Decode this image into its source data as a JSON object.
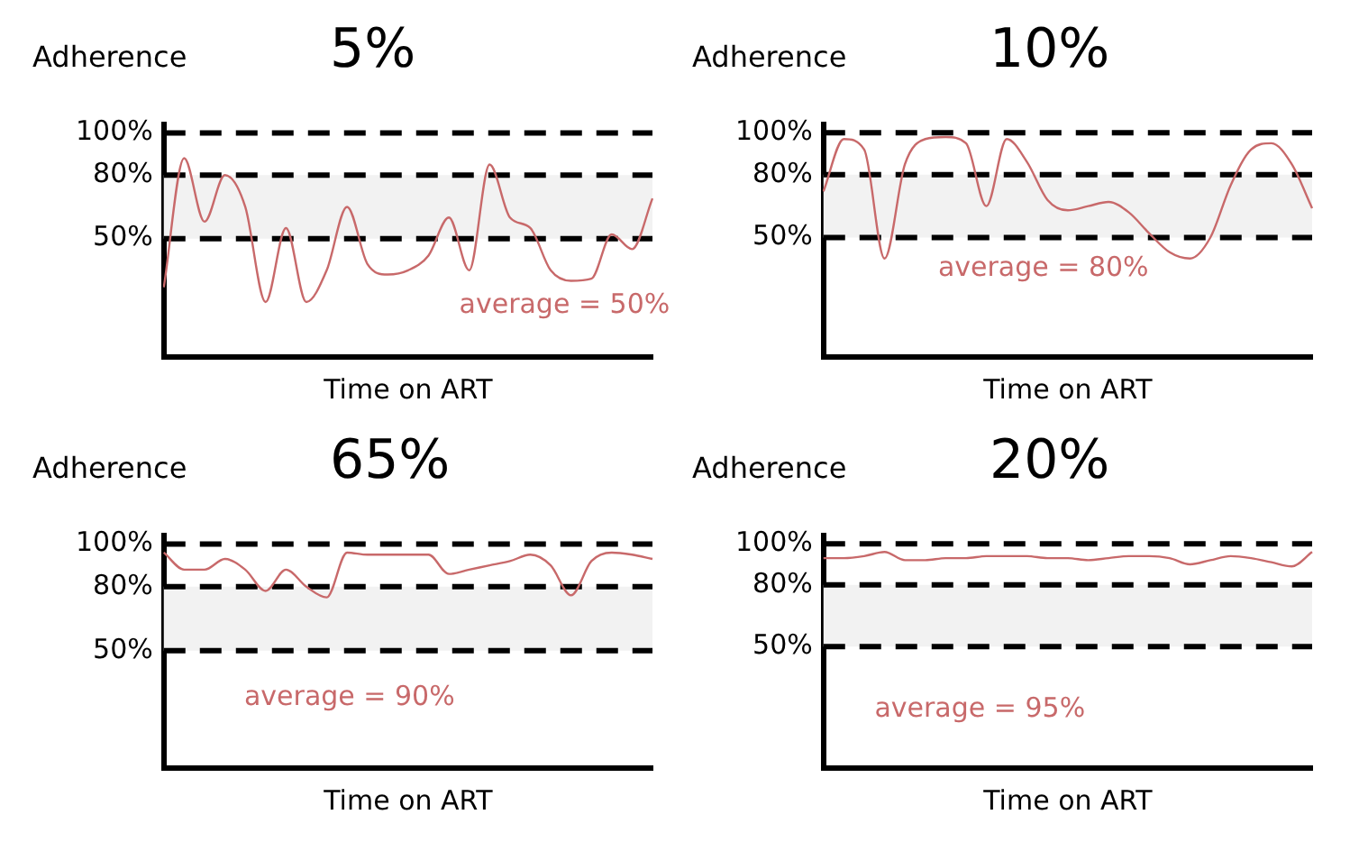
{
  "chart_data": [
    {
      "type": "line",
      "title": "5%",
      "ylabel": "Adherence",
      "xlabel": "Time on ART",
      "categories": [
        null,
        null,
        null,
        null,
        null,
        null,
        null,
        null,
        null,
        null,
        null,
        null,
        null,
        null,
        null,
        null,
        null,
        null,
        null,
        null,
        null,
        null,
        null,
        null,
        null
      ],
      "values": [
        27,
        88,
        58,
        80,
        65,
        20,
        55,
        20,
        35,
        65,
        38,
        33,
        35,
        42,
        60,
        35,
        85,
        60,
        55,
        35,
        30,
        31,
        52,
        45,
        69
      ],
      "color": "#c8696a",
      "marker": "none",
      "line_style": "solid",
      "tick_labels": "y",
      "ylim": [
        -6,
        104
      ],
      "yticks": [
        {
          "value": 50,
          "label": "50%"
        },
        {
          "value": 80,
          "label": "80%"
        },
        {
          "value": 100,
          "label": "100%"
        }
      ],
      "ref_lines": [
        {
          "axis": "y",
          "value": 100,
          "color": "#000000",
          "line_style": "dashed"
        },
        {
          "axis": "y",
          "value": 80,
          "color": "#000000",
          "line_style": "dashed"
        },
        {
          "axis": "y",
          "value": 50,
          "color": "#000000",
          "line_style": "dashed"
        }
      ],
      "bands": [
        {
          "axis": "y",
          "from": 50,
          "to": 80,
          "color": "#f2f2f2"
        }
      ],
      "annotations": [
        "average = 50%"
      ]
    },
    {
      "type": "line",
      "title": "10%",
      "ylabel": "Adherence",
      "xlabel": "Time on ART",
      "categories": [
        null,
        null,
        null,
        null,
        null,
        null,
        null,
        null,
        null,
        null,
        null,
        null,
        null,
        null,
        null,
        null,
        null,
        null,
        null,
        null,
        null,
        null,
        null,
        null,
        null
      ],
      "values": [
        72,
        97,
        92,
        40,
        85,
        97,
        98,
        95,
        65,
        97,
        86,
        68,
        63,
        65,
        67,
        62,
        52,
        43,
        40,
        50,
        75,
        92,
        95,
        85,
        64
      ],
      "color": "#c8696a",
      "marker": "none",
      "line_style": "solid",
      "tick_labels": "y",
      "ylim": [
        -7,
        104
      ],
      "yticks": [
        {
          "value": 50,
          "label": "50%"
        },
        {
          "value": 80,
          "label": "80%"
        },
        {
          "value": 100,
          "label": "100%"
        }
      ],
      "ref_lines": [
        {
          "axis": "y",
          "value": 100,
          "color": "#000000",
          "line_style": "dashed"
        },
        {
          "axis": "y",
          "value": 80,
          "color": "#000000",
          "line_style": "dashed"
        },
        {
          "axis": "y",
          "value": 50,
          "color": "#000000",
          "line_style": "dashed"
        }
      ],
      "bands": [
        {
          "axis": "y",
          "from": 50,
          "to": 80,
          "color": "#f2f2f2"
        }
      ],
      "annotations": [
        "average = 80%"
      ]
    },
    {
      "type": "line",
      "title": "65%",
      "ylabel": "Adherence",
      "xlabel": "Time on ART",
      "categories": [
        null,
        null,
        null,
        null,
        null,
        null,
        null,
        null,
        null,
        null,
        null,
        null,
        null,
        null,
        null,
        null,
        null,
        null,
        null,
        null,
        null,
        null,
        null,
        null,
        null
      ],
      "values": [
        96,
        88,
        88,
        93,
        88,
        78,
        88,
        80,
        75,
        96,
        95,
        95,
        95,
        95,
        86,
        88,
        90,
        92,
        95,
        90,
        76,
        92,
        96,
        95,
        93
      ],
      "color": "#c8696a",
      "marker": "none",
      "line_style": "solid",
      "tick_labels": "y",
      "ylim": [
        -5,
        104
      ],
      "yticks": [
        {
          "value": 50,
          "label": "50%"
        },
        {
          "value": 80,
          "label": "80%"
        },
        {
          "value": 100,
          "label": "100%"
        }
      ],
      "ref_lines": [
        {
          "axis": "y",
          "value": 100,
          "color": "#000000",
          "line_style": "dashed"
        },
        {
          "axis": "y",
          "value": 80,
          "color": "#000000",
          "line_style": "dashed"
        },
        {
          "axis": "y",
          "value": 50,
          "color": "#000000",
          "line_style": "dashed"
        }
      ],
      "bands": [
        {
          "axis": "y",
          "from": 50,
          "to": 80,
          "color": "#f2f2f2"
        }
      ],
      "annotations": [
        "average = 90%"
      ]
    },
    {
      "type": "line",
      "title": "20%",
      "ylabel": "Adherence",
      "xlabel": "Time on ART",
      "categories": [
        null,
        null,
        null,
        null,
        null,
        null,
        null,
        null,
        null,
        null,
        null,
        null,
        null,
        null,
        null,
        null,
        null,
        null,
        null,
        null,
        null,
        null,
        null,
        null,
        null
      ],
      "values": [
        93,
        93,
        94,
        96,
        92,
        92,
        93,
        93,
        94,
        94,
        94,
        93,
        93,
        92,
        93,
        94,
        94,
        93,
        90,
        92,
        94,
        93,
        91,
        89,
        96
      ],
      "color": "#c8696a",
      "marker": "none",
      "line_style": "solid",
      "tick_labels": "y",
      "ylim": [
        -9,
        104
      ],
      "yticks": [
        {
          "value": 50,
          "label": "50%"
        },
        {
          "value": 80,
          "label": "80%"
        },
        {
          "value": 100,
          "label": "100%"
        }
      ],
      "ref_lines": [
        {
          "axis": "y",
          "value": 100,
          "color": "#000000",
          "line_style": "dashed"
        },
        {
          "axis": "y",
          "value": 80,
          "color": "#000000",
          "line_style": "dashed"
        },
        {
          "axis": "y",
          "value": 50,
          "color": "#000000",
          "line_style": "dashed"
        }
      ],
      "bands": [
        {
          "axis": "y",
          "from": 50,
          "to": 80,
          "color": "#f2f2f2"
        }
      ],
      "annotations": [
        "average = 95%"
      ]
    }
  ]
}
